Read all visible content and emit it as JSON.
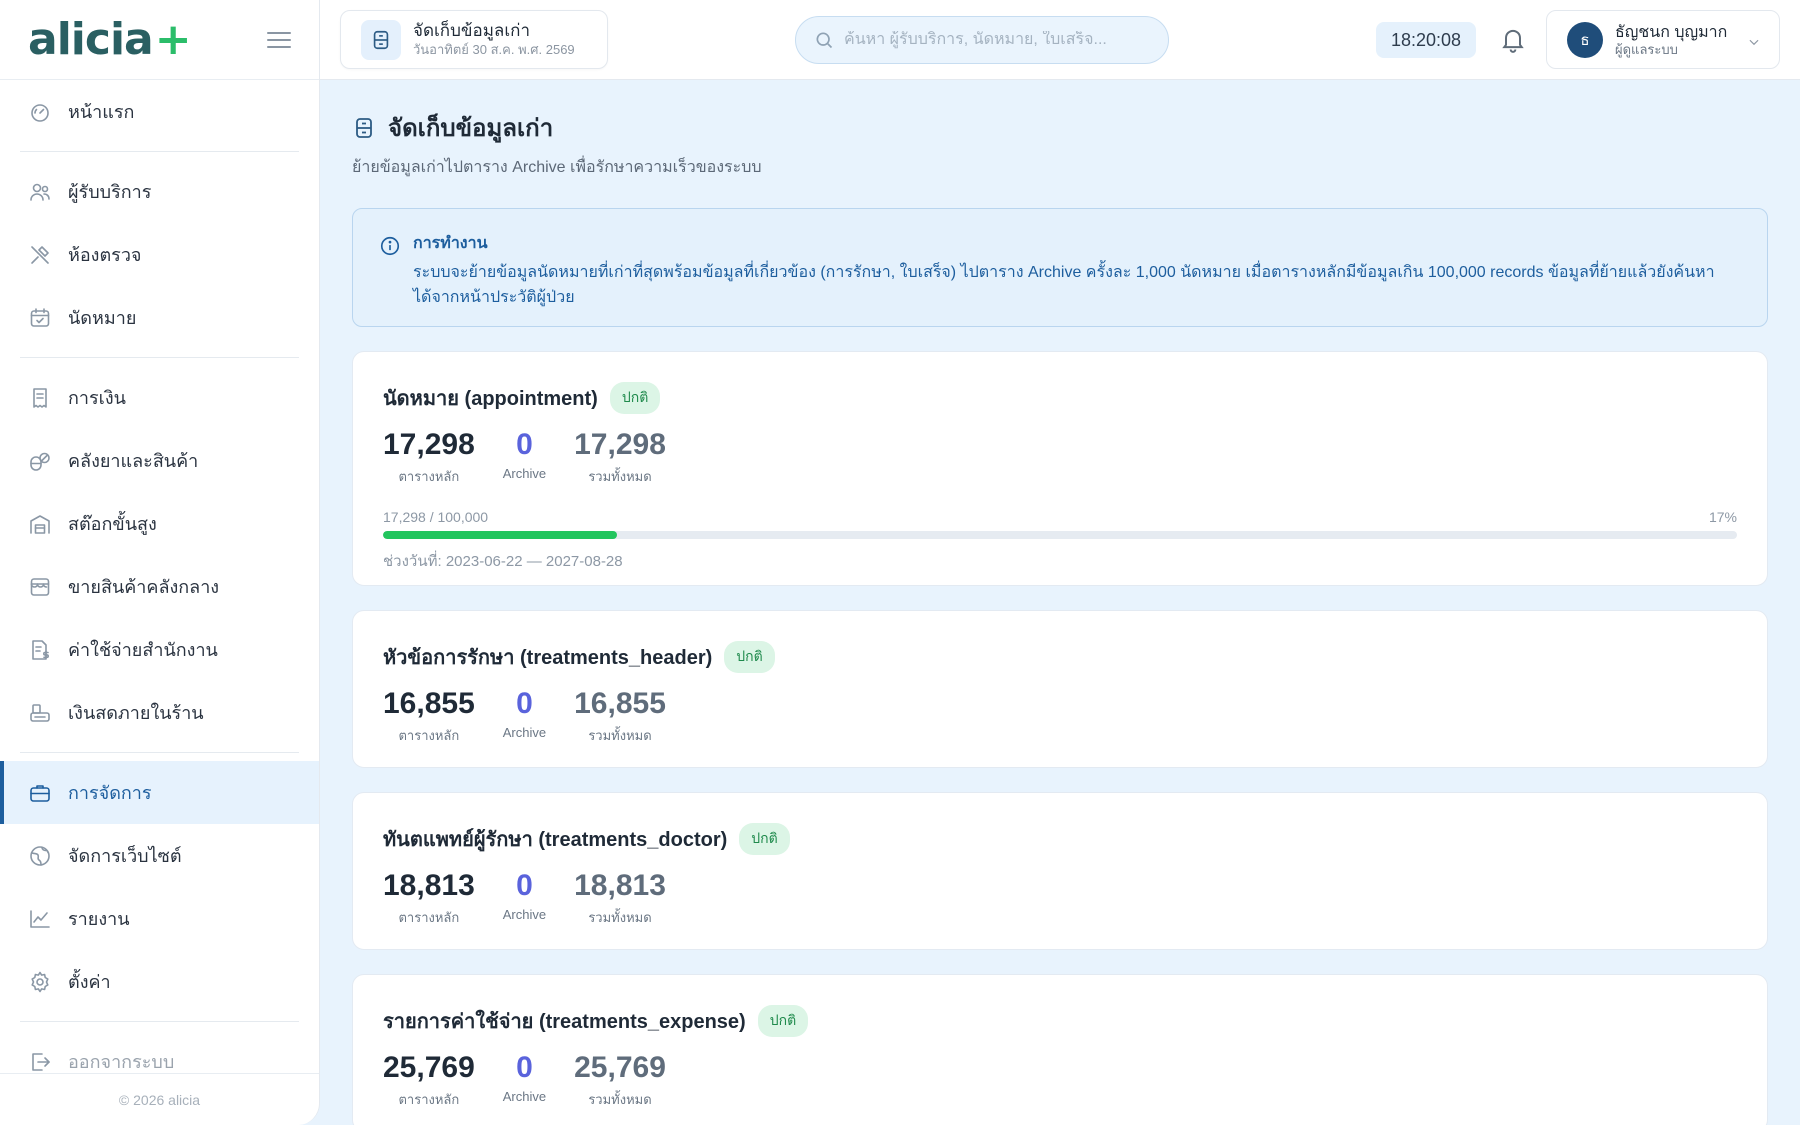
{
  "app": {
    "logo_text": "alicia",
    "logo_plus": "+",
    "footer": "© 2026 alicia"
  },
  "sidebar": {
    "groups": [
      [
        {
          "label": "หน้าแรก",
          "icon": "gauge-icon"
        }
      ],
      [
        {
          "label": "ผู้รับบริการ",
          "icon": "users-icon"
        },
        {
          "label": "ห้องตรวจ",
          "icon": "tools-icon"
        },
        {
          "label": "นัดหมาย",
          "icon": "calendar-icon"
        }
      ],
      [
        {
          "label": "การเงิน",
          "icon": "receipt-icon"
        },
        {
          "label": "คลังยาและสินค้า",
          "icon": "pills-icon"
        },
        {
          "label": "สต๊อกขั้นสูง",
          "icon": "warehouse-icon"
        },
        {
          "label": "ขายสินค้าคลังกลาง",
          "icon": "store-icon"
        },
        {
          "label": "ค่าใช้จ่ายสำนักงาน",
          "icon": "expense-icon"
        },
        {
          "label": "เงินสดภายในร้าน",
          "icon": "cash-icon"
        }
      ],
      [
        {
          "label": "การจัดการ",
          "icon": "briefcase-icon",
          "active": true
        },
        {
          "label": "จัดการเว็บไซต์",
          "icon": "globe-icon"
        },
        {
          "label": "รายงาน",
          "icon": "chart-icon"
        },
        {
          "label": "ตั้งค่า",
          "icon": "gear-icon"
        }
      ],
      [
        {
          "label": "ออกจากระบบ",
          "icon": "logout-icon"
        }
      ]
    ]
  },
  "topbar": {
    "tab_title": "จัดเก็บข้อมูลเก่า",
    "tab_date": "วันอาทิตย์ 30 ส.ค. พ.ศ. 2569",
    "search_placeholder": "ค้นหา ผู้รับบริการ, นัดหมาย, ใบเสร็จ...",
    "clock": "18:20:08",
    "user_initial": "ธ",
    "user_name": "ธัญชนก บุญมาก",
    "user_role": "ผู้ดูแลระบบ"
  },
  "page": {
    "title": "จัดเก็บข้อมูลเก่า",
    "subtitle": "ย้ายข้อมูลเก่าไปตาราง Archive เพื่อรักษาความเร็วของระบบ",
    "info_title": "การทำงาน",
    "info_text": "ระบบจะย้ายข้อมูลนัดหมายที่เก่าที่สุดพร้อมข้อมูลที่เกี่ยวข้อง (การรักษา, ใบเสร็จ) ไปตาราง Archive ครั้งละ 1,000 นัดหมาย เมื่อตารางหลักมีข้อมูลเกิน 100,000 records ข้อมูลที่ย้ายแล้วยังค้นหาได้จากหน้าประวัติผู้ป่วย"
  },
  "labels": {
    "main": "ตารางหลัก",
    "archive": "Archive",
    "total": "รวมทั้งหมด"
  },
  "cards": [
    {
      "title": "นัดหมาย (appointment)",
      "status": "ปกติ",
      "main": "17,298",
      "archive": "0",
      "total": "17,298",
      "progress_text": "17,298 / 100,000",
      "progress_pct_text": "17%",
      "progress": 0.17298,
      "range": "ช่วงวันที่: 2023-06-22 — 2027-08-28"
    },
    {
      "title": "หัวข้อการรักษา (treatments_header)",
      "status": "ปกติ",
      "main": "16,855",
      "archive": "0",
      "total": "16,855"
    },
    {
      "title": "ทันตแพทย์ผู้รักษา (treatments_doctor)",
      "status": "ปกติ",
      "main": "18,813",
      "archive": "0",
      "total": "18,813"
    },
    {
      "title": "รายการค่าใช้จ่าย (treatments_expense)",
      "status": "ปกติ",
      "main": "25,769",
      "archive": "0",
      "total": "25,769"
    }
  ],
  "colors": {
    "accent": "#1d5e9e",
    "progress": "#22c55e",
    "archive_num": "#5a63dc",
    "badge_bg": "#dcf5e6"
  }
}
